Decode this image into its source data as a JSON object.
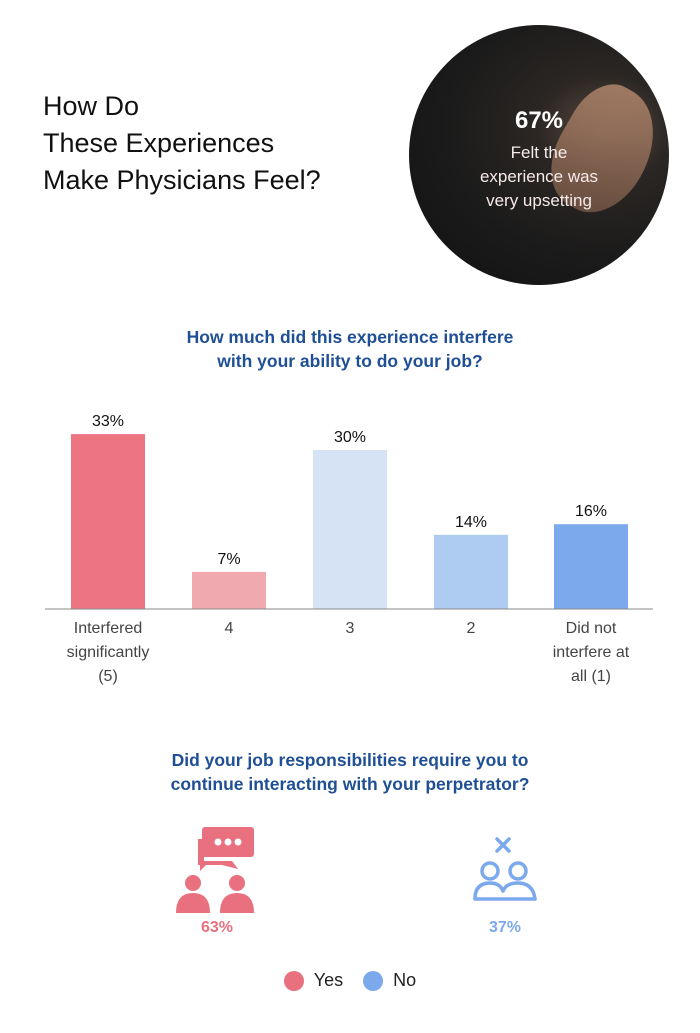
{
  "header": {
    "title_lines": [
      "How Do",
      "These Experiences",
      "Make Physicians Feel?"
    ]
  },
  "stat_circle": {
    "percent": "67%",
    "text_lines": [
      "Felt the",
      "experience was",
      "very upsetting"
    ]
  },
  "chart_data": {
    "type": "bar",
    "title": "How much did this experience interfere with your ability to do your job?",
    "title_lines": [
      "How much did this experience interfere",
      "with your ability to do your job?"
    ],
    "categories": [
      "Interfered significantly (5)",
      "4",
      "3",
      "2",
      "Did not interfere at all (1)"
    ],
    "category_lines": [
      [
        "Interfered",
        "significantly",
        "(5)"
      ],
      [
        "4"
      ],
      [
        "3"
      ],
      [
        "2"
      ],
      [
        "Did not",
        "interfere at",
        "all (1)"
      ]
    ],
    "values": [
      33,
      7,
      30,
      14,
      16
    ],
    "data_labels": [
      "33%",
      "7%",
      "30%",
      "14%",
      "16%"
    ],
    "colors": [
      "#ED7582",
      "#F1A9B0",
      "#D6E3F5",
      "#AECBF1",
      "#7BA9EC"
    ],
    "ylim": [
      0,
      35
    ],
    "grid": false
  },
  "question2": {
    "lines": [
      "Did your job responsibilities require you to",
      "continue interacting with your perpetrator?"
    ],
    "yes": {
      "percent": "63%",
      "icon": "people-conversation-icon",
      "color": "#E9707E"
    },
    "no": {
      "percent": "37%",
      "icon": "people-x-icon",
      "color": "#7BA9EC"
    }
  },
  "legend": [
    {
      "label": "Yes",
      "color": "#E9707E"
    },
    {
      "label": "No",
      "color": "#7BA9EC"
    }
  ]
}
